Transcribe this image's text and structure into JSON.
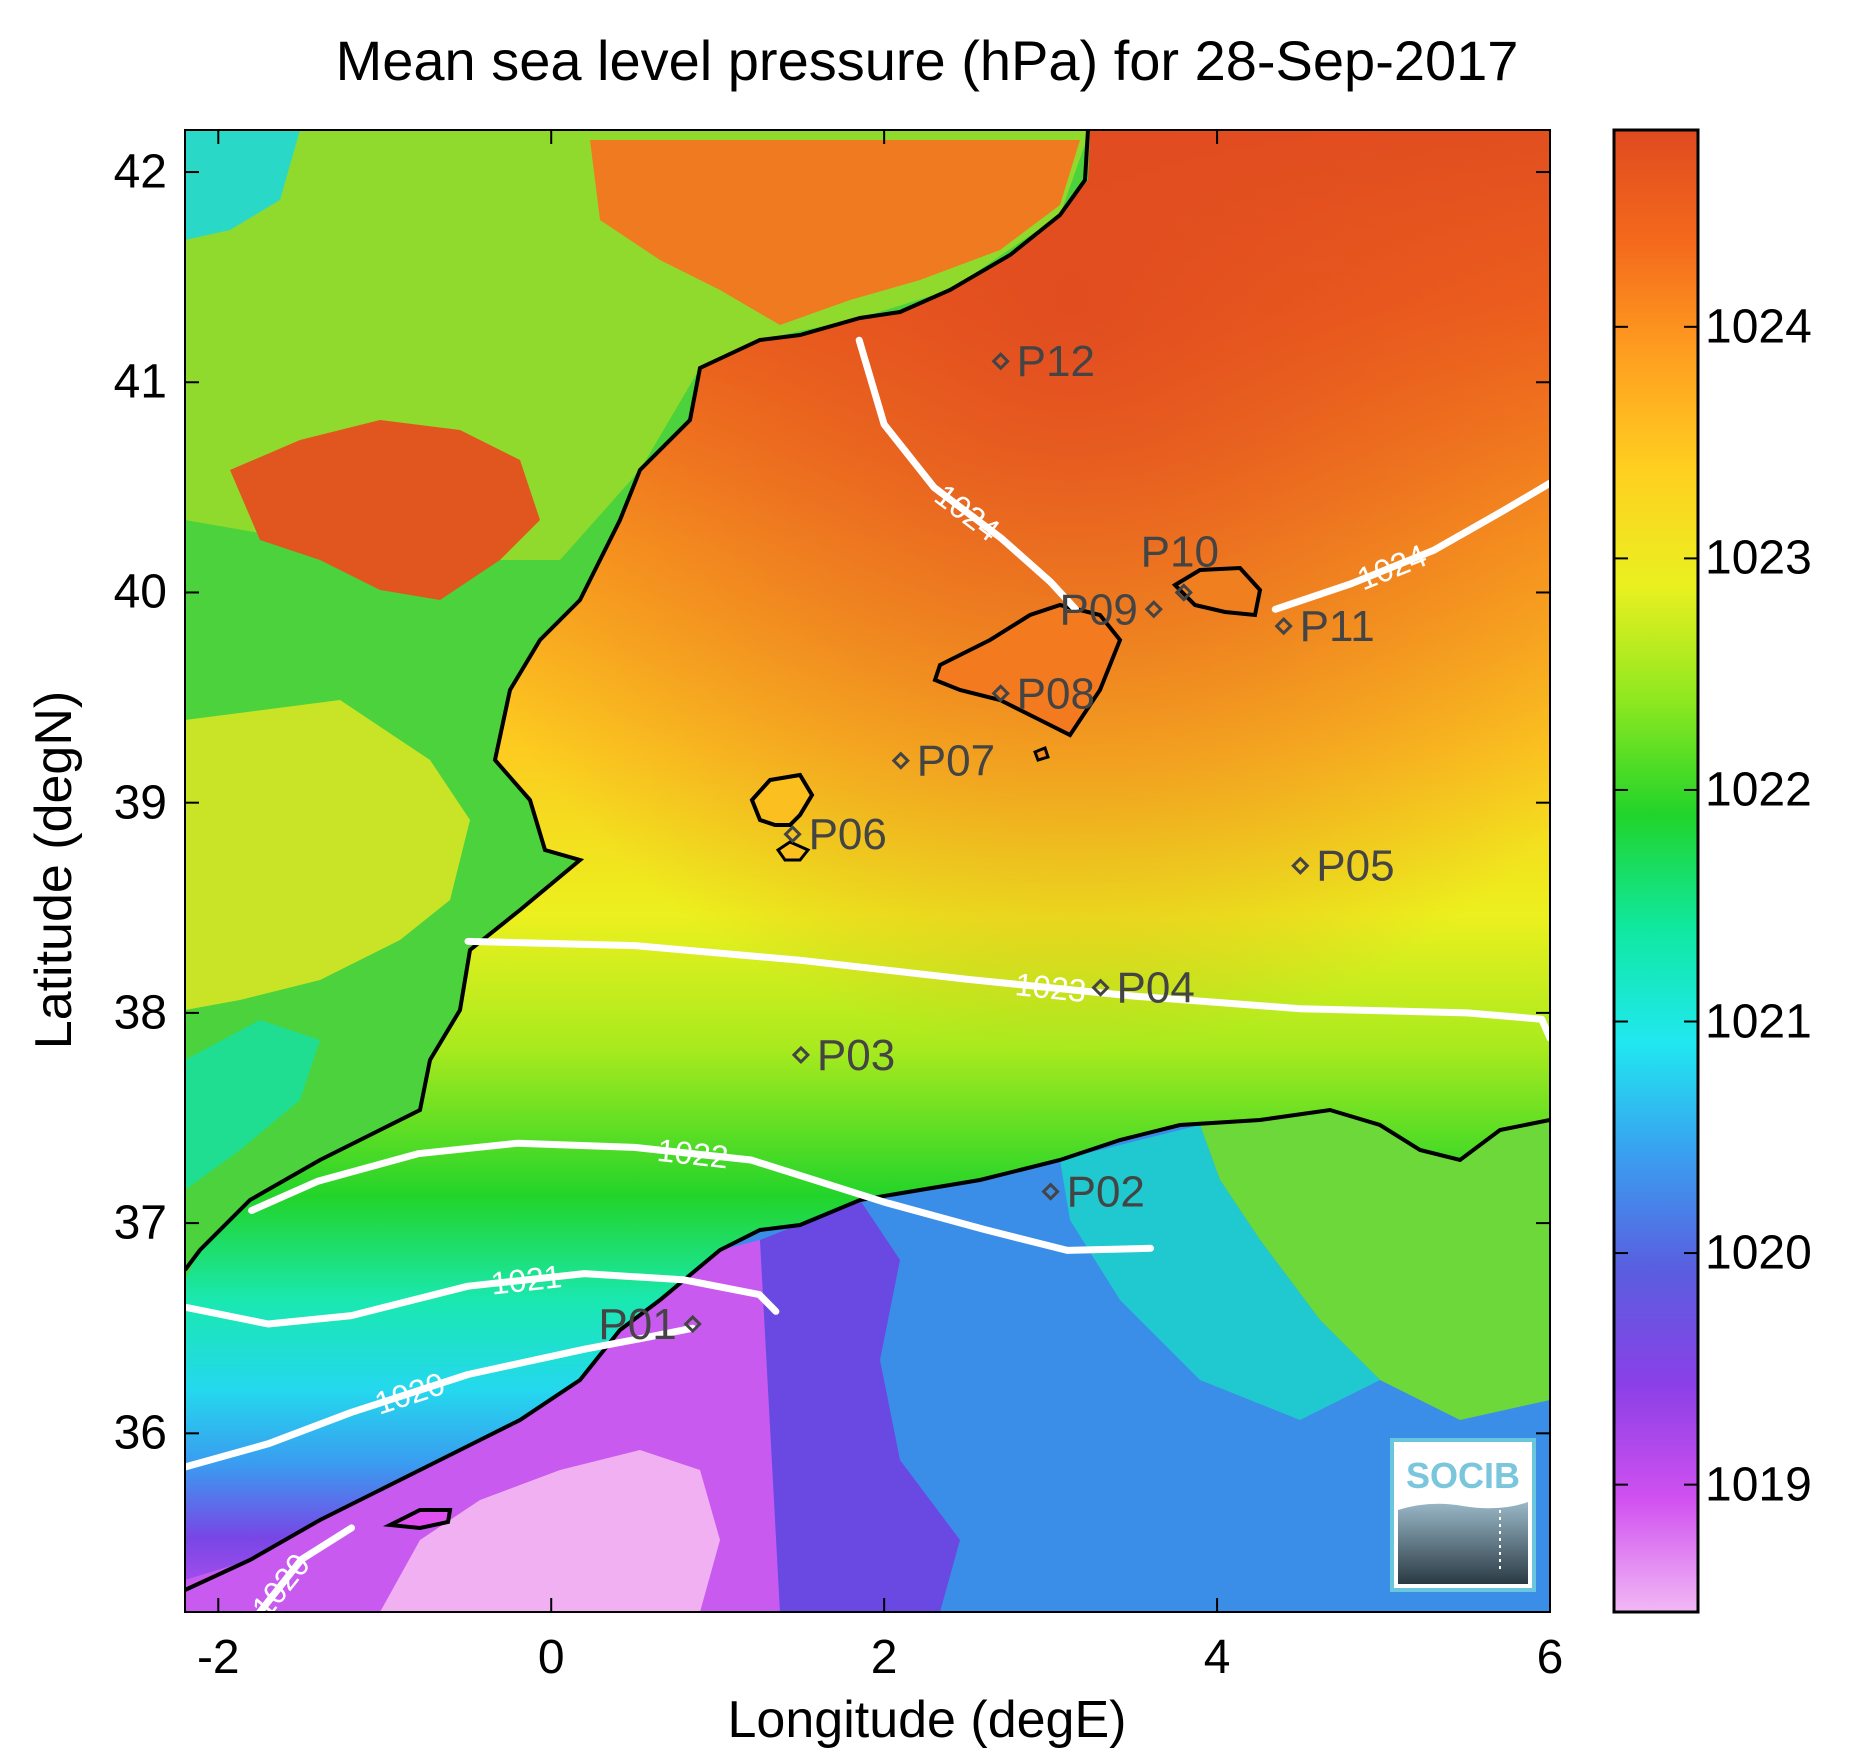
{
  "title": "Mean sea level pressure (hPa) for 28-Sep-2017",
  "xlabel": "Longitude (degE)",
  "ylabel": "Latitude (degN)",
  "logo_text": "SOCIB",
  "chart_data": {
    "type": "heatmap",
    "title": "Mean sea level pressure (hPa) for 28-Sep-2017",
    "xlabel": "Longitude (degE)",
    "ylabel": "Latitude (degN)",
    "xlim": [
      -2.2,
      6.0
    ],
    "ylim": [
      35.15,
      42.2
    ],
    "xticks": [
      -2,
      0,
      2,
      4,
      6
    ],
    "yticks": [
      36,
      37,
      38,
      39,
      40,
      41,
      42
    ],
    "colorbar": {
      "range": [
        1018.45,
        1024.85
      ],
      "ticks": [
        1019,
        1020,
        1021,
        1022,
        1023,
        1024
      ],
      "colormap": [
        "#f2b8f5",
        "#d050f0",
        "#8a40e6",
        "#5a5ee0",
        "#3a9ef0",
        "#20e8f0",
        "#10e8a0",
        "#22d42a",
        "#8ee820",
        "#eaf020",
        "#ffd020",
        "#ffa020",
        "#f46a1c",
        "#e04a20"
      ]
    },
    "contours": [
      {
        "level": "1020",
        "points": [
          [
            -2.2,
            35.84
          ],
          [
            -1.7,
            35.95
          ],
          [
            -1.2,
            36.1
          ],
          [
            -0.5,
            36.28
          ],
          [
            0.2,
            36.4
          ],
          [
            0.6,
            36.46
          ],
          [
            0.85,
            36.5
          ]
        ]
      },
      {
        "level": "1020",
        "points": [
          [
            -1.75,
            35.15
          ],
          [
            -1.5,
            35.4
          ],
          [
            -1.2,
            35.55
          ]
        ]
      },
      {
        "level": "1021",
        "points": [
          [
            -2.2,
            36.6
          ],
          [
            -1.7,
            36.52
          ],
          [
            -1.2,
            36.56
          ],
          [
            -0.5,
            36.7
          ],
          [
            0.2,
            36.76
          ],
          [
            0.8,
            36.73
          ],
          [
            1.25,
            36.66
          ],
          [
            1.35,
            36.58
          ]
        ]
      },
      {
        "level": "1022",
        "points": [
          [
            -1.8,
            37.06
          ],
          [
            -1.4,
            37.2
          ],
          [
            -0.8,
            37.33
          ],
          [
            -0.2,
            37.38
          ],
          [
            0.5,
            37.36
          ],
          [
            1.2,
            37.3
          ],
          [
            2.0,
            37.1
          ],
          [
            2.6,
            36.97
          ],
          [
            3.1,
            36.87
          ],
          [
            3.6,
            36.88
          ]
        ]
      },
      {
        "level": "1023",
        "points": [
          [
            -0.5,
            38.34
          ],
          [
            0.5,
            38.32
          ],
          [
            1.5,
            38.25
          ],
          [
            2.5,
            38.16
          ],
          [
            3.5,
            38.08
          ],
          [
            4.5,
            38.02
          ],
          [
            5.5,
            38.0
          ],
          [
            5.95,
            37.97
          ],
          [
            6.0,
            37.88
          ]
        ]
      },
      {
        "level": "1024",
        "points": [
          [
            1.85,
            41.2
          ],
          [
            2.0,
            40.8
          ],
          [
            2.3,
            40.5
          ],
          [
            2.7,
            40.26
          ],
          [
            3.0,
            40.05
          ],
          [
            3.15,
            39.92
          ]
        ]
      },
      {
        "level": "1024",
        "points": [
          [
            4.35,
            39.92
          ],
          [
            4.8,
            40.04
          ],
          [
            5.3,
            40.2
          ],
          [
            5.7,
            40.38
          ],
          [
            6.0,
            40.52
          ]
        ]
      }
    ],
    "stations": [
      {
        "name": "P01",
        "lon": 0.85,
        "lat": 36.52,
        "label_side": "left"
      },
      {
        "name": "P02",
        "lon": 3.0,
        "lat": 37.15,
        "label_side": "right"
      },
      {
        "name": "P03",
        "lon": 1.5,
        "lat": 37.8,
        "label_side": "right"
      },
      {
        "name": "P04",
        "lon": 3.3,
        "lat": 38.12,
        "label_side": "right"
      },
      {
        "name": "P05",
        "lon": 4.5,
        "lat": 38.7,
        "label_side": "right"
      },
      {
        "name": "P06",
        "lon": 1.45,
        "lat": 38.85,
        "label_side": "right"
      },
      {
        "name": "P07",
        "lon": 2.1,
        "lat": 39.2,
        "label_side": "right"
      },
      {
        "name": "P08",
        "lon": 2.7,
        "lat": 39.52,
        "label_side": "right"
      },
      {
        "name": "P09",
        "lon": 3.62,
        "lat": 39.92,
        "label_side": "left"
      },
      {
        "name": "P10",
        "lon": 3.8,
        "lat": 40.0,
        "label_side": "above"
      },
      {
        "name": "P11",
        "lon": 4.4,
        "lat": 39.84,
        "label_side": "right"
      },
      {
        "name": "P12",
        "lon": 2.7,
        "lat": 41.1,
        "label_side": "right"
      }
    ]
  }
}
